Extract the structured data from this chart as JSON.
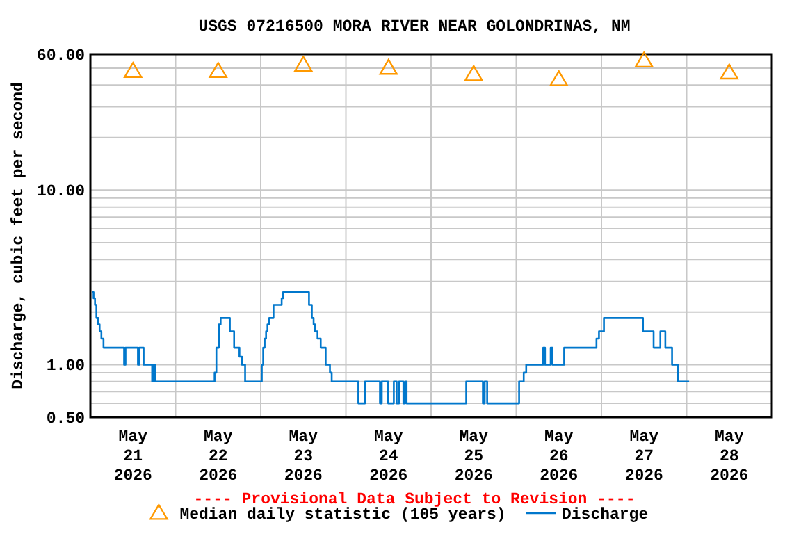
{
  "chart_data": {
    "type": "step",
    "title": "USGS 07216500 MORA RIVER NEAR GOLONDRINAS, NM",
    "ylabel": "Discharge, cubic feet per second",
    "log": "y",
    "grid": true,
    "legend": "bottom",
    "annotations": [
      "---- Provisional Data Subject to Revision ----"
    ],
    "xlim": [
      "2026-05-21T00:00",
      "2026-05-29T00:00"
    ],
    "xticks": [
      {
        "value": "2026-05-21T00:00",
        "label": null
      },
      {
        "value": "2026-05-21T12:00",
        "label": "May\n21\n2026"
      },
      {
        "value": "2026-05-22T00:00",
        "label": null
      },
      {
        "value": "2026-05-22T12:00",
        "label": "May\n22\n2026"
      },
      {
        "value": "2026-05-23T00:00",
        "label": null
      },
      {
        "value": "2026-05-23T12:00",
        "label": "May\n23\n2026"
      },
      {
        "value": "2026-05-24T00:00",
        "label": null
      },
      {
        "value": "2026-05-24T12:00",
        "label": "May\n24\n2026"
      },
      {
        "value": "2026-05-25T00:00",
        "label": null
      },
      {
        "value": "2026-05-25T12:00",
        "label": "May\n25\n2026"
      },
      {
        "value": "2026-05-26T00:00",
        "label": null
      },
      {
        "value": "2026-05-26T12:00",
        "label": "May\n26\n2026"
      },
      {
        "value": "2026-05-27T00:00",
        "label": null
      },
      {
        "value": "2026-05-27T12:00",
        "label": "May\n27\n2026"
      },
      {
        "value": "2026-05-28T00:00",
        "label": null
      },
      {
        "value": "2026-05-28T12:00",
        "label": "May\n28\n2026"
      },
      {
        "value": "2026-05-29T00:00",
        "label": null
      }
    ],
    "ylim": [
      0.5,
      60
    ],
    "yticks": [
      {
        "value": 0.5,
        "label": "0.50"
      },
      {
        "value": 0.6,
        "label": null
      },
      {
        "value": 0.7,
        "label": null
      },
      {
        "value": 0.8,
        "label": null
      },
      {
        "value": 0.9,
        "label": null
      },
      {
        "value": 1,
        "label": "1.00"
      },
      {
        "value": 2,
        "label": null
      },
      {
        "value": 3,
        "label": null
      },
      {
        "value": 4,
        "label": null
      },
      {
        "value": 5,
        "label": null
      },
      {
        "value": 6,
        "label": null
      },
      {
        "value": 7,
        "label": null
      },
      {
        "value": 8,
        "label": null
      },
      {
        "value": 9,
        "label": null
      },
      {
        "value": 10,
        "label": "10.00"
      },
      {
        "value": 20,
        "label": null
      },
      {
        "value": 30,
        "label": null
      },
      {
        "value": 40,
        "label": null
      },
      {
        "value": 50,
        "label": null
      },
      {
        "value": 60,
        "label": "60.00"
      }
    ],
    "series": [
      {
        "name": "Median daily statistic (105 years)",
        "type": "scatter",
        "marker": "triangle",
        "color": "#ff9900",
        "x": [
          "2026-05-21T12:00",
          "2026-05-22T12:00",
          "2026-05-23T12:00",
          "2026-05-24T12:00",
          "2026-05-25T12:00",
          "2026-05-26T12:00",
          "2026-05-27T12:00",
          "2026-05-28T12:00"
        ],
        "values": [
          48,
          48,
          52,
          50,
          46,
          43,
          55,
          47
        ]
      },
      {
        "name": "Discharge",
        "color": "#0077cc",
        "x": [
          "2026-05-21T00:24",
          "2026-05-21T00:54",
          "2026-05-21T01:18",
          "2026-05-21T01:42",
          "2026-05-21T02:12",
          "2026-05-21T02:36",
          "2026-05-21T03:06",
          "2026-05-21T03:42",
          "2026-05-21T09:30",
          "2026-05-21T09:54",
          "2026-05-21T13:24",
          "2026-05-21T13:48",
          "2026-05-21T15:00",
          "2026-05-21T17:24",
          "2026-05-21T17:48",
          "2026-05-21T18:18",
          "2026-05-21T19:18",
          "2026-05-22T11:00",
          "2026-05-22T11:30",
          "2026-05-22T12:12",
          "2026-05-22T12:42",
          "2026-05-22T15:18",
          "2026-05-22T16:30",
          "2026-05-22T18:00",
          "2026-05-22T18:42",
          "2026-05-22T19:36",
          "2026-05-23T00:18",
          "2026-05-23T00:42",
          "2026-05-23T01:06",
          "2026-05-23T01:30",
          "2026-05-23T01:54",
          "2026-05-23T02:24",
          "2026-05-23T03:36",
          "2026-05-23T05:54",
          "2026-05-23T06:18",
          "2026-05-23T13:36",
          "2026-05-23T14:24",
          "2026-05-23T14:54",
          "2026-05-23T15:18",
          "2026-05-23T16:00",
          "2026-05-23T16:54",
          "2026-05-23T18:18",
          "2026-05-23T19:30",
          "2026-05-23T20:00",
          "2026-05-24T03:30",
          "2026-05-24T05:24",
          "2026-05-24T09:36",
          "2026-05-24T10:06",
          "2026-05-24T11:54",
          "2026-05-24T13:30",
          "2026-05-24T14:18",
          "2026-05-24T15:00",
          "2026-05-24T16:12",
          "2026-05-24T16:42",
          "2026-05-24T17:06",
          "2026-05-25T09:54",
          "2026-05-25T14:36",
          "2026-05-25T15:06",
          "2026-05-25T15:48",
          "2026-05-26T00:48",
          "2026-05-26T02:06",
          "2026-05-26T02:48",
          "2026-05-26T07:36",
          "2026-05-26T08:06",
          "2026-05-26T09:42",
          "2026-05-26T10:12",
          "2026-05-26T13:30",
          "2026-05-26T22:36",
          "2026-05-26T23:18",
          "2026-05-27T00:42",
          "2026-05-27T11:42",
          "2026-05-27T14:42",
          "2026-05-27T16:36",
          "2026-05-27T18:00",
          "2026-05-27T19:54",
          "2026-05-27T21:30",
          "2026-05-28T00:42"
        ],
        "values": [
          2.6,
          2.4,
          2.2,
          1.85,
          1.7,
          1.55,
          1.41,
          1.25,
          1.0,
          1.25,
          1.0,
          1.25,
          1.0,
          0.8,
          1.0,
          0.8,
          0.8,
          0.9,
          1.25,
          1.7,
          1.85,
          1.55,
          1.25,
          1.11,
          1.0,
          0.8,
          1.0,
          1.25,
          1.41,
          1.55,
          1.7,
          1.85,
          2.2,
          2.4,
          2.6,
          2.2,
          1.85,
          1.7,
          1.55,
          1.41,
          1.25,
          1.0,
          0.9,
          0.8,
          0.6,
          0.8,
          0.6,
          0.8,
          0.6,
          0.8,
          0.6,
          0.8,
          0.6,
          0.8,
          0.6,
          0.8,
          0.6,
          0.8,
          0.6,
          0.8,
          0.9,
          1.0,
          1.25,
          1.0,
          1.25,
          1.0,
          1.25,
          1.41,
          1.55,
          1.85,
          1.55,
          1.25,
          1.55,
          1.25,
          1.0,
          0.8,
          0.8
        ]
      }
    ]
  }
}
